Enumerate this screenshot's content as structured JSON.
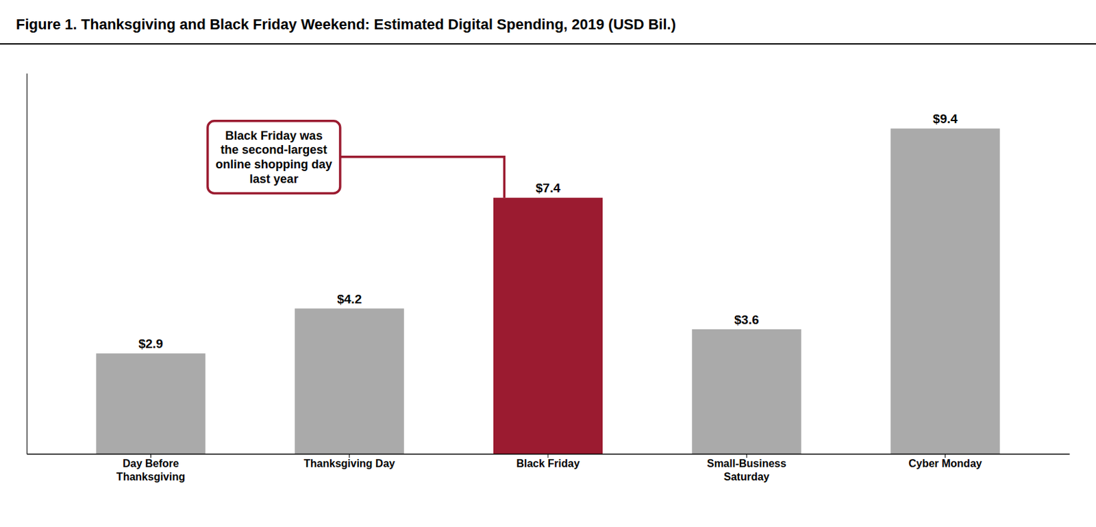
{
  "chart_data": {
    "type": "bar",
    "title": "Figure 1. Thanksgiving and Black Friday Weekend: Estimated Digital Spending, 2019 (USD Bil.)",
    "categories": [
      "Day Before\nThanksgiving",
      "Thanksgiving Day",
      "Black Friday",
      "Small-Business\nSaturday",
      "Cyber Monday"
    ],
    "values": [
      2.9,
      4.2,
      7.4,
      3.6,
      9.4
    ],
    "value_labels": [
      "$2.9",
      "$4.2",
      "$7.4",
      "$3.6",
      "$9.4"
    ],
    "colors": [
      "#aaaaaa",
      "#aaaaaa",
      "#9b1b30",
      "#aaaaaa",
      "#aaaaaa"
    ],
    "ylim": [
      0,
      11
    ],
    "data_labels": true,
    "tick_labels": "x",
    "grid": false,
    "annotations": [
      {
        "text": "Black Friday was\nthe second-largest\nonline shopping day\nlast year",
        "category": "Black Friday",
        "color": "#9b1b30"
      }
    ]
  }
}
